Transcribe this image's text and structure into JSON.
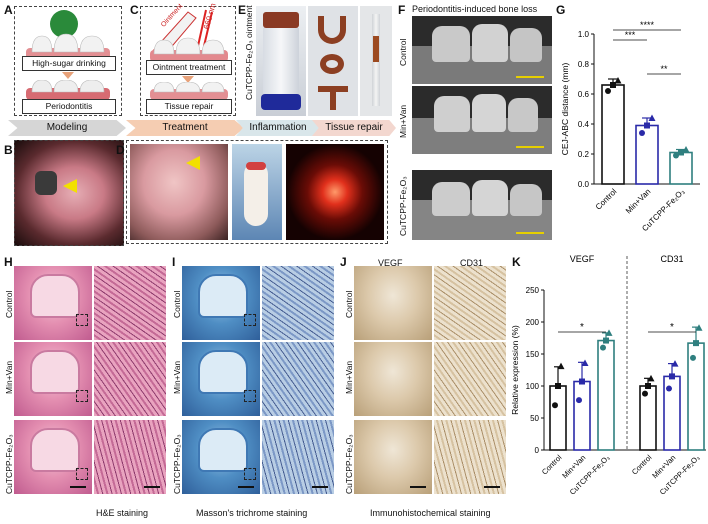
{
  "panels": {
    "A": {
      "letter": "A",
      "box1": "High-sugar drinking",
      "box2": "Periodontitis",
      "step": "Modeling"
    },
    "B": {
      "letter": "B"
    },
    "C": {
      "letter": "C",
      "box1": "Ointment treatment",
      "box2": "Tissue repair",
      "step": "Treatment",
      "laser": "660 nm",
      "tube": "Ointment"
    },
    "D": {
      "letter": "D"
    },
    "E": {
      "letter": "E",
      "label": "CuTCPP-Fe₂O₃ ointment",
      "step1": "Inflammation",
      "step2": "Tissue repair"
    },
    "F": {
      "letter": "F",
      "title": "Periodontitis-induced bone loss",
      "rows": [
        "Control",
        "Min+Van",
        "CuTCPP-Fe₂O₃"
      ]
    },
    "H": {
      "letter": "H",
      "rows": [
        "Control",
        "Min+Van",
        "CuTCPP-Fe₂O₃"
      ],
      "caption": "H&E staining"
    },
    "I": {
      "letter": "I",
      "rows": [
        "Control",
        "Min+Van",
        "CuTCPP-Fe₂O₃"
      ],
      "caption": "Masson's trichrome staining"
    },
    "J": {
      "letter": "J",
      "cols": [
        "VEGF",
        "CD31"
      ],
      "rows": [
        "Control",
        "Min+Van",
        "CuTCPP-Fe₂O₃"
      ],
      "caption": "Immunohistochemical  staining"
    }
  },
  "chart_data": [
    {
      "panel": "G",
      "type": "bar",
      "categories": [
        "Control",
        "Min+Van",
        "CuTCPP-Fe₂O₃"
      ],
      "values": [
        0.66,
        0.39,
        0.21
      ],
      "errors": [
        0.04,
        0.05,
        0.02
      ],
      "points": [
        [
          0.62,
          0.66,
          0.69
        ],
        [
          0.34,
          0.39,
          0.44
        ],
        [
          0.19,
          0.21,
          0.23
        ]
      ],
      "colors": [
        "#111111",
        "#2a2aa8",
        "#2f7f7f"
      ],
      "ylabel": "CEJ-ABC distance (mm)",
      "ylim": [
        0,
        1.0
      ],
      "yticks": [
        0.0,
        0.2,
        0.4,
        0.6,
        0.8,
        1.0
      ],
      "significance": [
        {
          "from": 0,
          "to": 1,
          "label": "***"
        },
        {
          "from": 0,
          "to": 2,
          "label": "****"
        },
        {
          "from": 1,
          "to": 2,
          "label": "**"
        }
      ]
    },
    {
      "panel": "K",
      "type": "bar",
      "groups": [
        "VEGF",
        "CD31"
      ],
      "categories": [
        "Control",
        "Min+Van",
        "CuTCPP-Fe₂O₃"
      ],
      "series": [
        {
          "name": "VEGF",
          "values": [
            100,
            107,
            171
          ],
          "errors": [
            30,
            30,
            12
          ],
          "points": [
            [
              70,
              100,
              131
            ],
            [
              78,
              107,
              136
            ],
            [
              160,
              171,
              183
            ]
          ]
        },
        {
          "name": "CD31",
          "values": [
            100,
            115,
            167
          ],
          "errors": [
            12,
            20,
            25
          ],
          "points": [
            [
              88,
              100,
              112
            ],
            [
              96,
              115,
              135
            ],
            [
              144,
              167,
              191
            ]
          ]
        }
      ],
      "colors": [
        "#111111",
        "#2a2aa8",
        "#2f7f7f"
      ],
      "ylabel": "Relative expression (%)",
      "ylim": [
        0,
        250
      ],
      "yticks": [
        0,
        50,
        100,
        150,
        200,
        250
      ],
      "significance_label": "*"
    }
  ]
}
